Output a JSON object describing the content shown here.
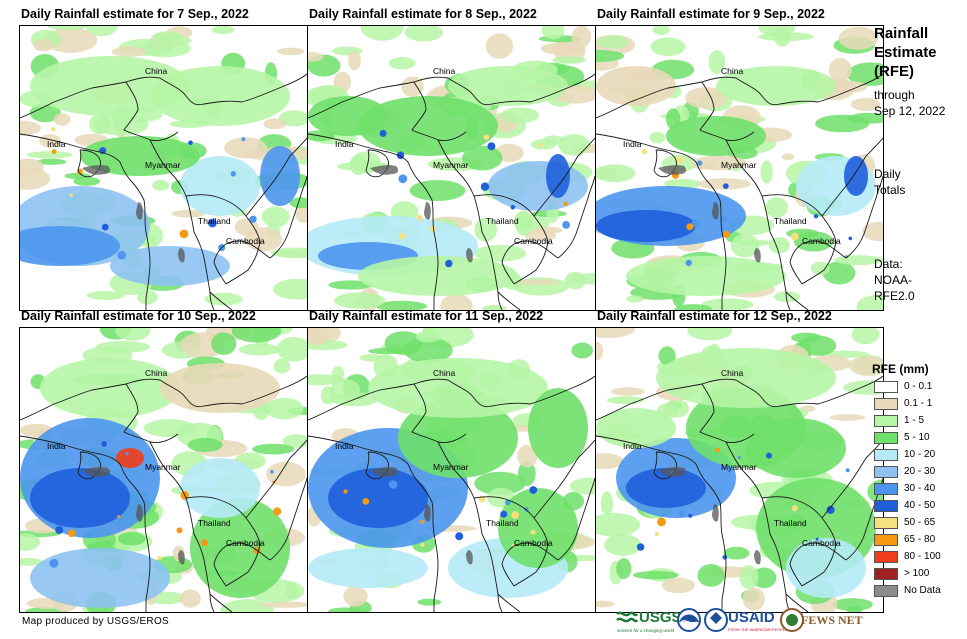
{
  "panels": [
    {
      "title": "Daily Rainfall estimate for 7 Sep., 2022"
    },
    {
      "title": "Daily Rainfall estimate for 8 Sep., 2022"
    },
    {
      "title": "Daily Rainfall estimate for 9 Sep., 2022"
    },
    {
      "title": "Daily Rainfall estimate for 10 Sep., 2022"
    },
    {
      "title": "Daily Rainfall estimate for 11 Sep., 2022"
    },
    {
      "title": "Daily Rainfall estimate for 12 Sep., 2022"
    }
  ],
  "map_labels": {
    "china": "China",
    "india": "India",
    "myanmar": "Myanmar",
    "thailand": "Thailand",
    "cambodia": "Cambodia"
  },
  "sidebar": {
    "title_line1": "Rainfall",
    "title_line2": "Estimate",
    "title_line3": "(RFE)",
    "through": "through",
    "date": "Sep 12, 2022",
    "daily": "Daily",
    "totals": "Totals",
    "data_label": "Data:",
    "data_src1": "NOAA-",
    "data_src2": "RFE2.0"
  },
  "legend": {
    "title": "RFE (mm)",
    "items": [
      {
        "label": "0 - 0.1",
        "color": "#ffffff"
      },
      {
        "label": "0.1 - 1",
        "color": "#e8d9b8"
      },
      {
        "label": "1 - 5",
        "color": "#b6f5a6"
      },
      {
        "label": "5 - 10",
        "color": "#6fe06a"
      },
      {
        "label": "10 - 20",
        "color": "#b5eaf6"
      },
      {
        "label": "20 - 30",
        "color": "#8dc2f2"
      },
      {
        "label": "30 - 40",
        "color": "#4d96ee"
      },
      {
        "label": "40 - 50",
        "color": "#1f5fdc"
      },
      {
        "label": "50 - 65",
        "color": "#f7e07e"
      },
      {
        "label": "65 - 80",
        "color": "#f59a12"
      },
      {
        "label": "80 - 100",
        "color": "#ef3c1a"
      },
      {
        "label": "> 100",
        "color": "#9e2020"
      },
      {
        "label": "No Data",
        "color": "#8c8c8c"
      }
    ]
  },
  "credit": "Map produced by USGS/EROS",
  "logos": {
    "usgs": "USGS",
    "usgs_tag": "science for a changing world",
    "noaa": "NOAA",
    "usaid": "USAID",
    "usaid_tag": "FROM THE AMERICAN PEOPLE",
    "fewsnet": "FEWS NET"
  }
}
